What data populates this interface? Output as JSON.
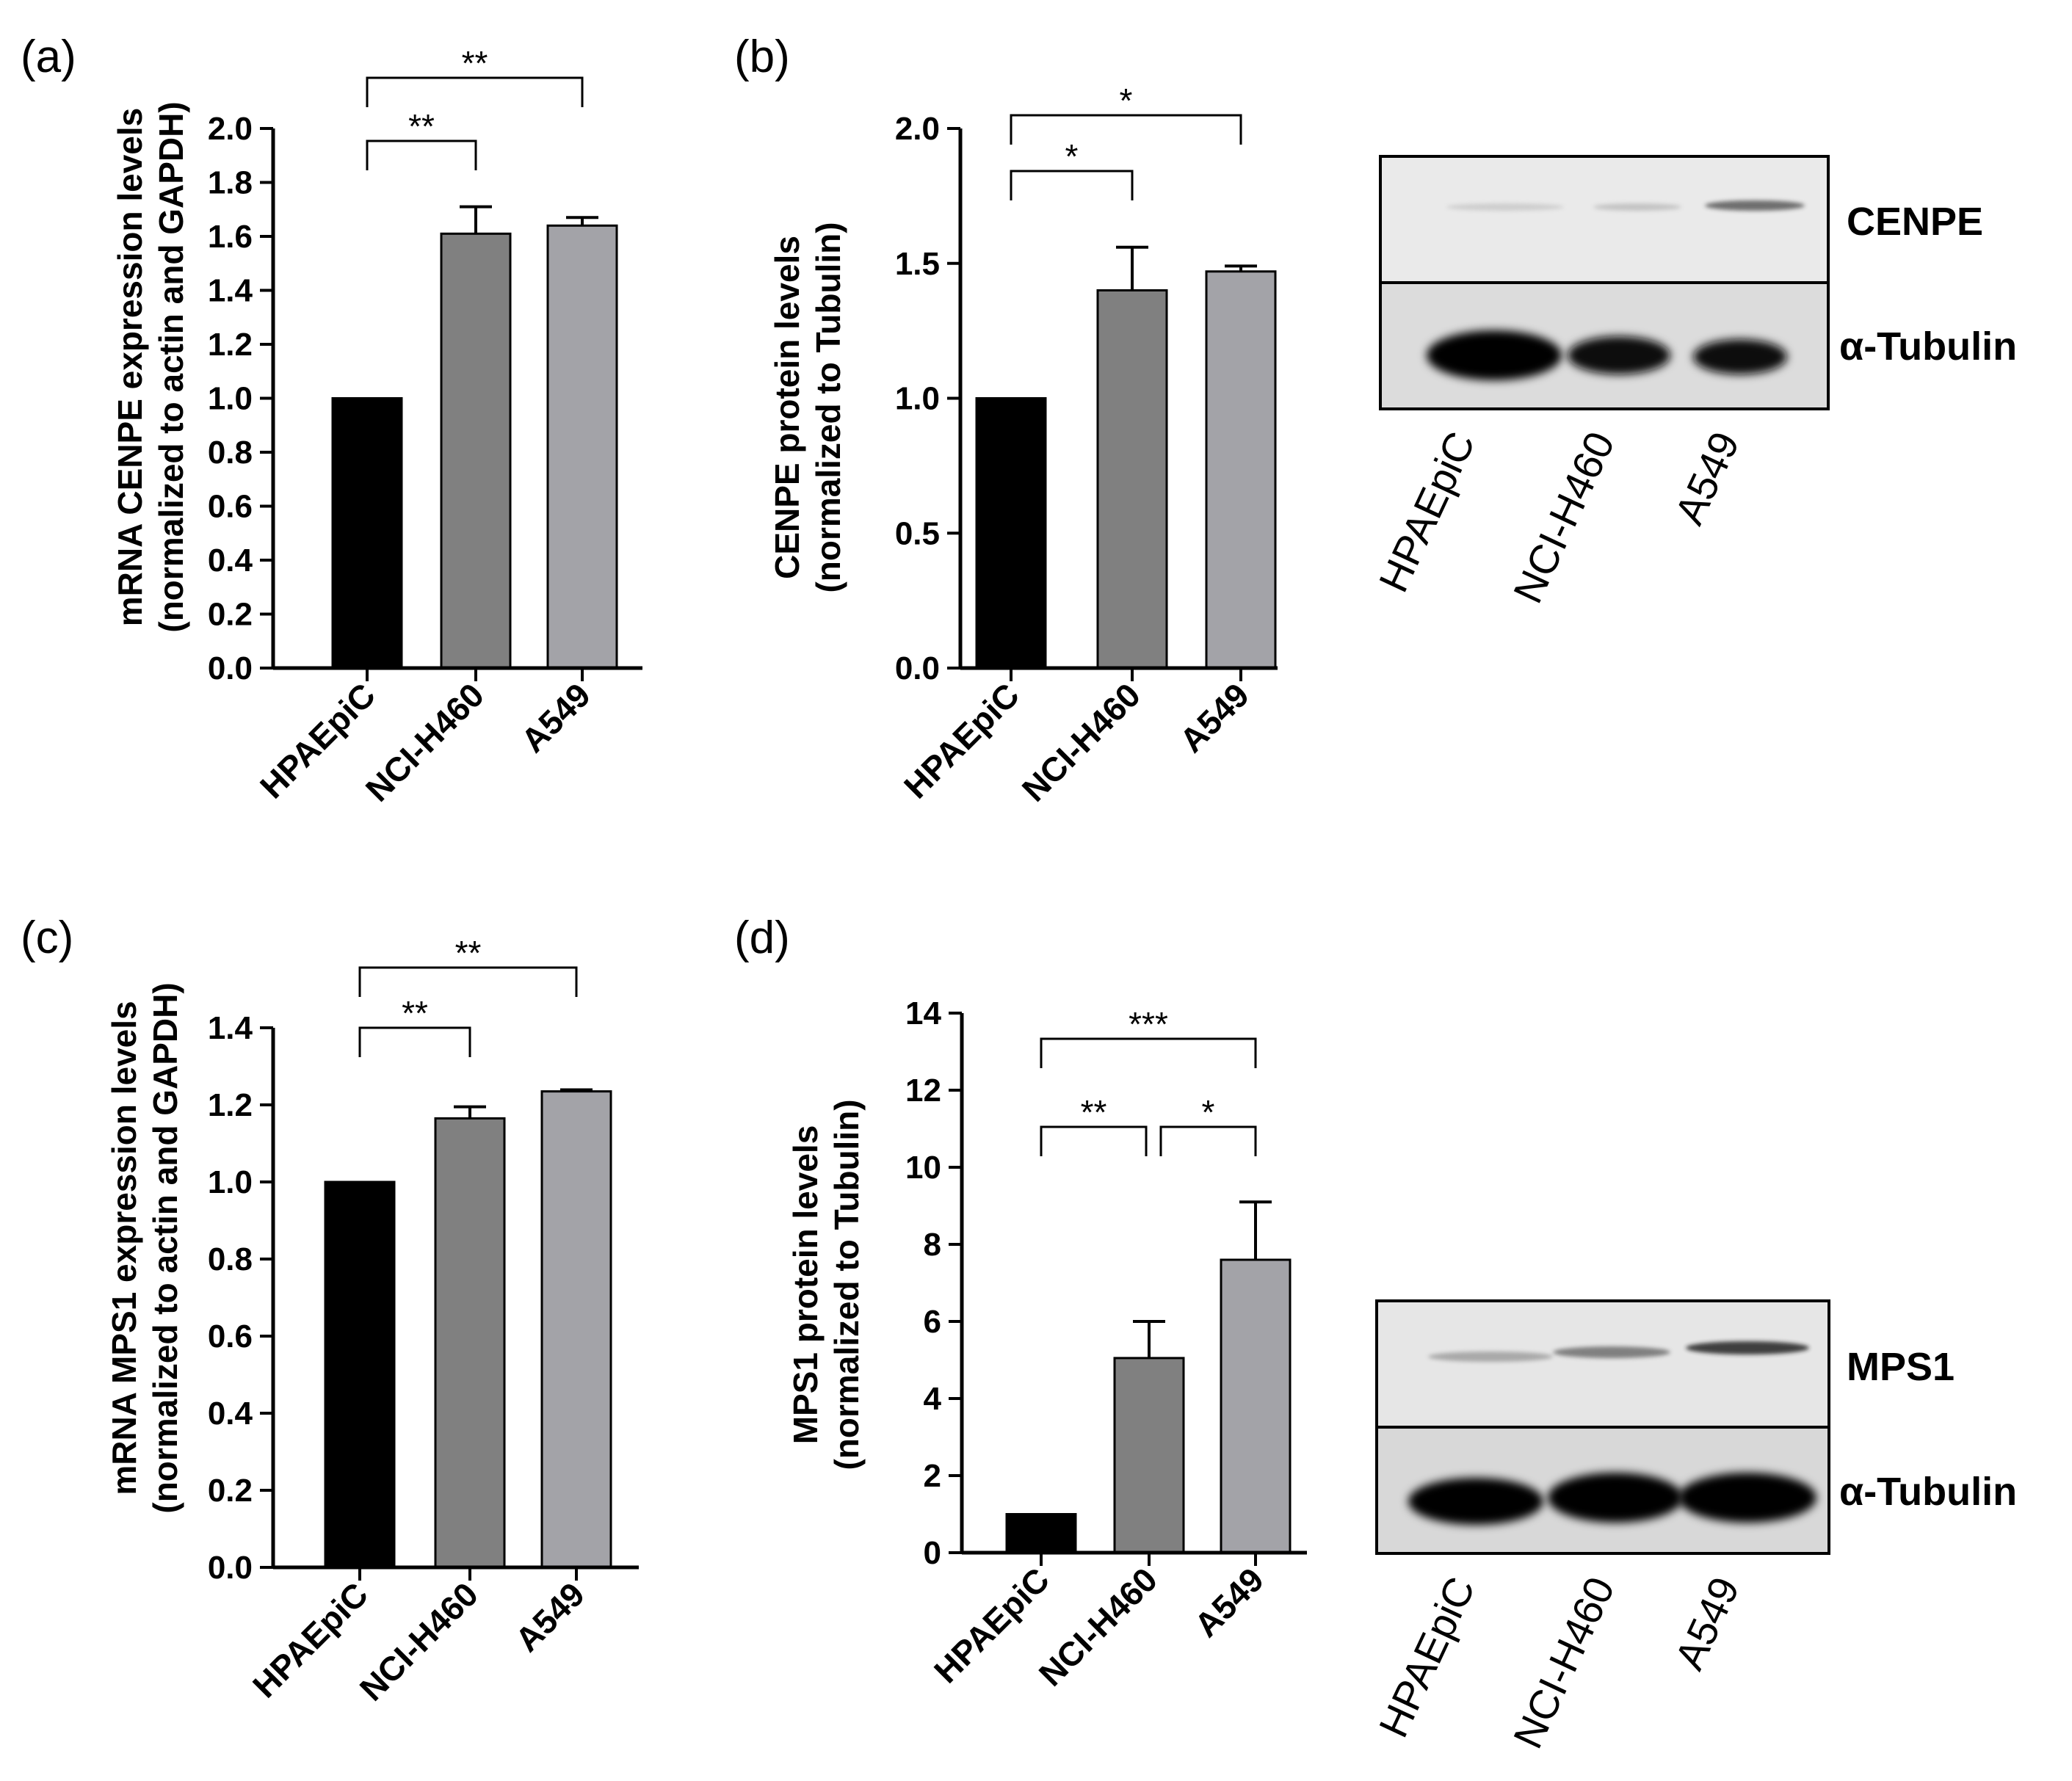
{
  "chart_data": [
    {
      "panel": "(a)",
      "type": "bar",
      "categories": [
        "HPAEpiC",
        "NCI-H460",
        "A549"
      ],
      "values": [
        1.0,
        1.61,
        1.64
      ],
      "errors": [
        0,
        0.1,
        0.03
      ],
      "colors": [
        "#000000",
        "#808080",
        "#a3a3a8"
      ],
      "ylabel_lines": [
        "mRNA CENPE expression levels",
        "(normalized to actin and GAPDH)"
      ],
      "ylim": [
        0,
        2.0
      ],
      "yticks": [
        "0.0",
        "0.2",
        "0.4",
        "0.6",
        "0.8",
        "1.0",
        "1.2",
        "1.4",
        "1.6",
        "1.8",
        "2.0"
      ],
      "significance": [
        {
          "from": 0,
          "to": 1,
          "label": "**"
        },
        {
          "from": 0,
          "to": 2,
          "label": "**"
        }
      ]
    },
    {
      "panel": "(b)",
      "type": "bar",
      "categories": [
        "HPAEpiC",
        "NCI-H460",
        "A549"
      ],
      "values": [
        1.0,
        1.4,
        1.47
      ],
      "errors": [
        0,
        0.16,
        0.02
      ],
      "colors": [
        "#000000",
        "#808080",
        "#a3a3a8"
      ],
      "ylabel_lines": [
        "CENPE protein levels",
        "(normalized to Tubulin)"
      ],
      "ylim": [
        0,
        2.0
      ],
      "yticks": [
        "0.0",
        "0.5",
        "1.0",
        "1.5",
        "2.0"
      ],
      "significance": [
        {
          "from": 0,
          "to": 1,
          "label": "*"
        },
        {
          "from": 0,
          "to": 2,
          "label": "*"
        }
      ]
    },
    {
      "panel": "(c)",
      "type": "bar",
      "categories": [
        "HPAEpiC",
        "NCI-H460",
        "A549"
      ],
      "values": [
        1.0,
        1.165,
        1.235
      ],
      "errors": [
        0,
        0.03,
        0.004
      ],
      "colors": [
        "#000000",
        "#808080",
        "#a3a3a8"
      ],
      "ylabel_lines": [
        "mRNA MPS1 expression levels",
        "(normalized to actin and GAPDH)"
      ],
      "ylim": [
        0,
        1.4
      ],
      "yticks": [
        "0.0",
        "0.2",
        "0.4",
        "0.6",
        "0.8",
        "1.0",
        "1.2",
        "1.4"
      ],
      "significance": [
        {
          "from": 0,
          "to": 1,
          "label": "**"
        },
        {
          "from": 0,
          "to": 2,
          "label": "**"
        }
      ]
    },
    {
      "panel": "(d)",
      "type": "bar",
      "categories": [
        "HPAEpiC",
        "NCI-H460",
        "A549"
      ],
      "values": [
        1.0,
        5.05,
        7.6
      ],
      "errors": [
        0,
        0.95,
        1.5
      ],
      "colors": [
        "#000000",
        "#808080",
        "#a3a3a8"
      ],
      "ylabel_lines": [
        "MPS1 protein levels",
        "(normalized to Tubulin)"
      ],
      "ylim": [
        0,
        14
      ],
      "yticks": [
        "0",
        "2",
        "4",
        "6",
        "8",
        "10",
        "12",
        "14"
      ],
      "significance": [
        {
          "from": 0,
          "to": 1,
          "label": "**"
        },
        {
          "from": 0,
          "to": 2,
          "label": "***"
        },
        {
          "from": 1,
          "to": 2,
          "label": "*"
        }
      ]
    }
  ],
  "blots": [
    {
      "panel": "(b)",
      "bands": [
        "CENPE",
        "α-Tubulin"
      ],
      "lanes": [
        "HPAEpiC",
        "NCI-H460",
        "A549"
      ]
    },
    {
      "panel": "(d)",
      "bands": [
        "MPS1",
        "α-Tubulin"
      ],
      "lanes": [
        "HPAEpiC",
        "NCI-H460",
        "A549"
      ]
    }
  ]
}
